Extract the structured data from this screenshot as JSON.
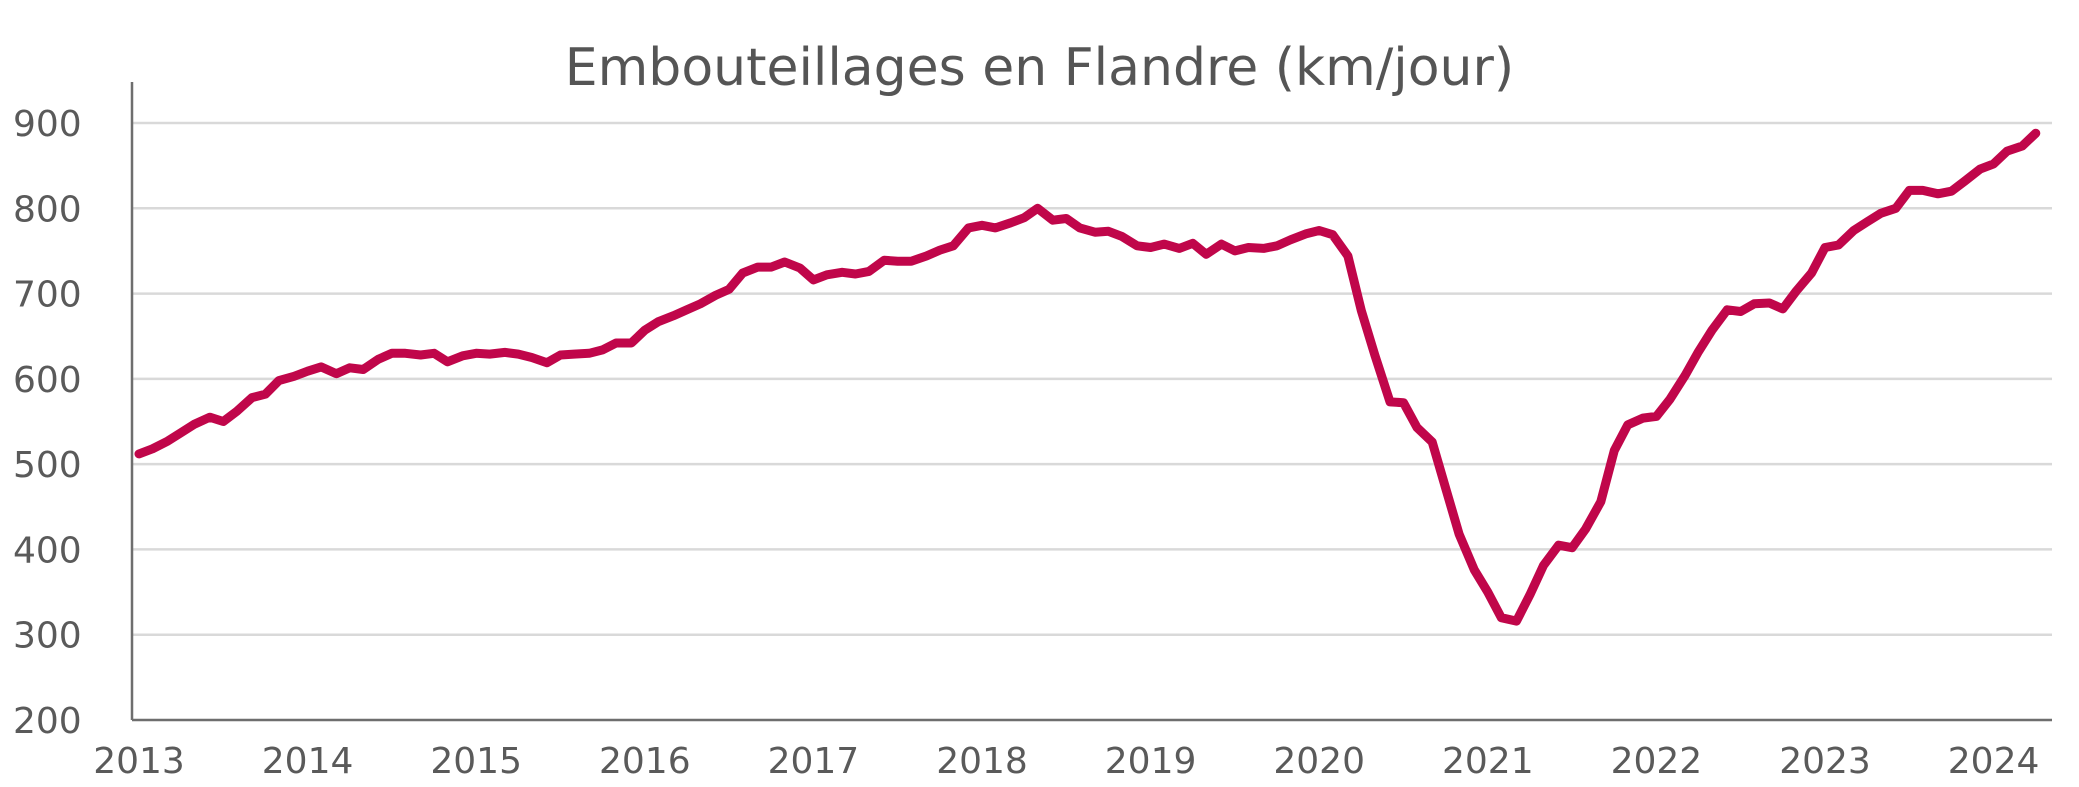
{
  "chart_data": {
    "type": "line",
    "title": "Embouteillages en Flandre (km/jour)",
    "xlabel": "",
    "ylabel": "",
    "xlim": [
      2013,
      2024.33
    ],
    "ylim": [
      200,
      900
    ],
    "x_ticks": [
      "2013",
      "2014",
      "2015",
      "2016",
      "2017",
      "2018",
      "2019",
      "2020",
      "2021",
      "2022",
      "2023",
      "2024"
    ],
    "y_ticks": [
      "200",
      "300",
      "400",
      "500",
      "600",
      "700",
      "800",
      "900"
    ],
    "grid": "horizontal",
    "legend": "none",
    "series": [
      {
        "color": "#c0064a",
        "points": [
          [
            2013.0,
            512
          ],
          [
            2013.08,
            518
          ],
          [
            2013.17,
            527
          ],
          [
            2013.25,
            537
          ],
          [
            2013.33,
            547
          ],
          [
            2013.42,
            555
          ],
          [
            2013.5,
            550
          ],
          [
            2013.58,
            562
          ],
          [
            2013.67,
            578
          ],
          [
            2013.75,
            582
          ],
          [
            2013.83,
            598
          ],
          [
            2013.92,
            603
          ],
          [
            2014.0,
            609
          ],
          [
            2014.08,
            614
          ],
          [
            2014.17,
            606
          ],
          [
            2014.25,
            613
          ],
          [
            2014.33,
            611
          ],
          [
            2014.42,
            623
          ],
          [
            2014.5,
            630
          ],
          [
            2014.58,
            630
          ],
          [
            2014.67,
            628
          ],
          [
            2014.75,
            630
          ],
          [
            2014.83,
            620
          ],
          [
            2014.92,
            627
          ],
          [
            2015.0,
            630
          ],
          [
            2015.08,
            629
          ],
          [
            2015.17,
            631
          ],
          [
            2015.25,
            629
          ],
          [
            2015.33,
            625
          ],
          [
            2015.42,
            619
          ],
          [
            2015.5,
            628
          ],
          [
            2015.58,
            629
          ],
          [
            2015.67,
            630
          ],
          [
            2015.75,
            634
          ],
          [
            2015.83,
            642
          ],
          [
            2015.92,
            642
          ],
          [
            2016.0,
            657
          ],
          [
            2016.08,
            667
          ],
          [
            2016.17,
            674
          ],
          [
            2016.25,
            681
          ],
          [
            2016.33,
            688
          ],
          [
            2016.42,
            698
          ],
          [
            2016.5,
            705
          ],
          [
            2016.58,
            724
          ],
          [
            2016.67,
            731
          ],
          [
            2016.75,
            731
          ],
          [
            2016.83,
            737
          ],
          [
            2016.92,
            730
          ],
          [
            2017.0,
            716
          ],
          [
            2017.08,
            722
          ],
          [
            2017.17,
            725
          ],
          [
            2017.25,
            723
          ],
          [
            2017.33,
            726
          ],
          [
            2017.42,
            739
          ],
          [
            2017.5,
            738
          ],
          [
            2017.58,
            738
          ],
          [
            2017.67,
            744
          ],
          [
            2017.75,
            751
          ],
          [
            2017.83,
            756
          ],
          [
            2017.92,
            777
          ],
          [
            2018.0,
            780
          ],
          [
            2018.08,
            777
          ],
          [
            2018.17,
            783
          ],
          [
            2018.25,
            789
          ],
          [
            2018.33,
            800
          ],
          [
            2018.42,
            786
          ],
          [
            2018.5,
            788
          ],
          [
            2018.58,
            777
          ],
          [
            2018.67,
            772
          ],
          [
            2018.75,
            773
          ],
          [
            2018.83,
            767
          ],
          [
            2018.92,
            756
          ],
          [
            2019.0,
            754
          ],
          [
            2019.08,
            758
          ],
          [
            2019.17,
            753
          ],
          [
            2019.25,
            759
          ],
          [
            2019.33,
            746
          ],
          [
            2019.42,
            758
          ],
          [
            2019.5,
            750
          ],
          [
            2019.58,
            754
          ],
          [
            2019.67,
            753
          ],
          [
            2019.75,
            756
          ],
          [
            2019.83,
            763
          ],
          [
            2019.92,
            770
          ],
          [
            2020.0,
            774
          ],
          [
            2020.08,
            769
          ],
          [
            2020.17,
            744
          ],
          [
            2020.25,
            680
          ],
          [
            2020.33,
            628
          ],
          [
            2020.42,
            573
          ],
          [
            2020.5,
            572
          ],
          [
            2020.58,
            543
          ],
          [
            2020.67,
            526
          ],
          [
            2020.75,
            472
          ],
          [
            2020.83,
            418
          ],
          [
            2020.92,
            376
          ],
          [
            2021.0,
            350
          ],
          [
            2021.08,
            320
          ],
          [
            2021.17,
            316
          ],
          [
            2021.25,
            347
          ],
          [
            2021.33,
            381
          ],
          [
            2021.42,
            405
          ],
          [
            2021.5,
            402
          ],
          [
            2021.58,
            424
          ],
          [
            2021.67,
            456
          ],
          [
            2021.75,
            516
          ],
          [
            2021.83,
            546
          ],
          [
            2021.92,
            554
          ],
          [
            2022.0,
            556
          ],
          [
            2022.08,
            576
          ],
          [
            2022.17,
            604
          ],
          [
            2022.25,
            632
          ],
          [
            2022.33,
            657
          ],
          [
            2022.42,
            681
          ],
          [
            2022.5,
            679
          ],
          [
            2022.58,
            688
          ],
          [
            2022.67,
            689
          ],
          [
            2022.75,
            682
          ],
          [
            2022.83,
            703
          ],
          [
            2022.92,
            724
          ],
          [
            2023.0,
            754
          ],
          [
            2023.08,
            757
          ],
          [
            2023.17,
            774
          ],
          [
            2023.25,
            784
          ],
          [
            2023.33,
            794
          ],
          [
            2023.42,
            800
          ],
          [
            2023.5,
            821
          ],
          [
            2023.58,
            821
          ],
          [
            2023.67,
            817
          ],
          [
            2023.75,
            820
          ],
          [
            2023.83,
            832
          ],
          [
            2023.92,
            846
          ],
          [
            2024.0,
            852
          ],
          [
            2024.08,
            867
          ],
          [
            2024.17,
            873
          ],
          [
            2024.25,
            888
          ]
        ]
      }
    ]
  }
}
